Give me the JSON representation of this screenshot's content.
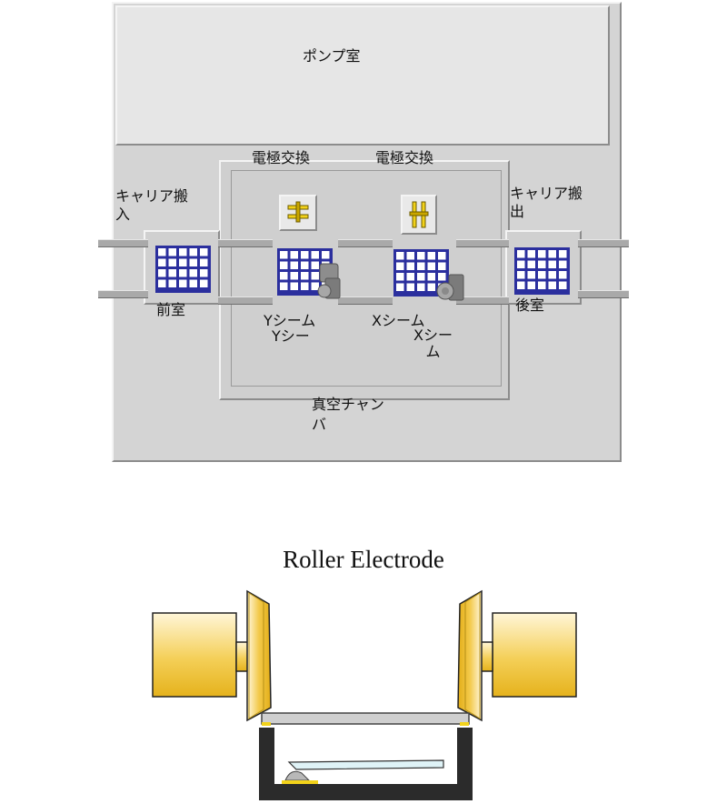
{
  "labels": {
    "pump_room": "ポンプ室",
    "electrode_exchange_1": "電極交換",
    "electrode_exchange_2": "電極交換",
    "carrier_in": "キャリア搬\n入",
    "carrier_out": "キャリア搬\n出",
    "front_chamber": "前室",
    "rear_chamber": "後室",
    "y_seam_1": "Yシーム",
    "y_seam_2": "Yシー",
    "x_seam_1": "Xシーム",
    "x_seam_2": "Xシー\nム",
    "vacuum_chamber": "真空チャン\nバ"
  },
  "roller": {
    "title": "Roller Electrode"
  },
  "colors": {
    "grid_blue": "#2b2f9e",
    "panel_gray": "#d8d8d8",
    "roller_gold": "#f0c23a",
    "roller_light": "#fff6d8"
  }
}
